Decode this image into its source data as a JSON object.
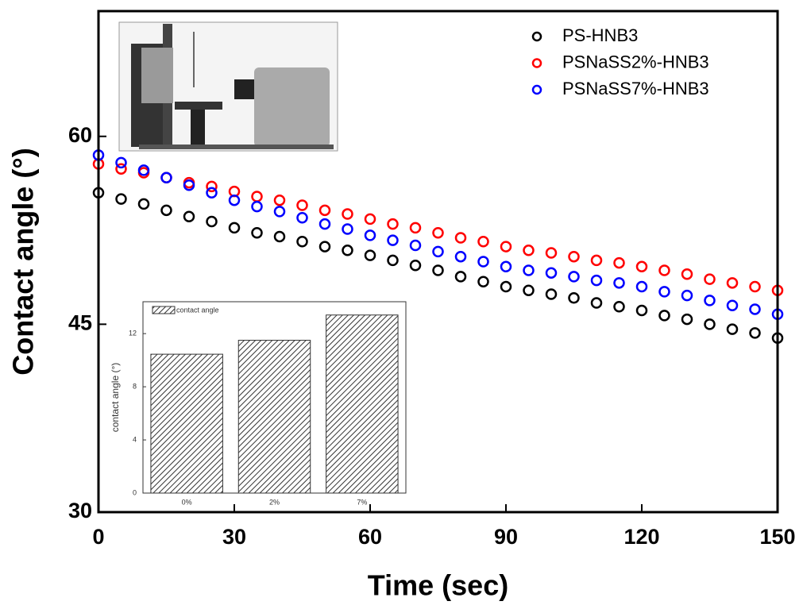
{
  "chart_data": [
    {
      "type": "scatter",
      "xlabel": "Time (sec)",
      "ylabel": "Contact angle (°)",
      "xlim": [
        0,
        150
      ],
      "xticks": [
        0,
        30,
        60,
        90,
        120,
        150
      ],
      "ylim": [
        30,
        70
      ],
      "yticks": [
        30,
        45,
        60
      ],
      "legend": "upper right",
      "x": [
        0,
        5,
        10,
        15,
        20,
        25,
        30,
        35,
        40,
        45,
        50,
        55,
        60,
        65,
        70,
        75,
        80,
        85,
        90,
        95,
        100,
        105,
        110,
        115,
        120,
        125,
        130,
        135,
        140,
        145,
        150
      ],
      "series": [
        {
          "name": "PS-HNB3",
          "color": "#000000",
          "values": [
            55.5,
            55.0,
            54.6,
            54.1,
            53.6,
            53.2,
            52.7,
            52.3,
            52.0,
            51.6,
            51.2,
            50.9,
            50.5,
            50.1,
            49.7,
            49.3,
            48.8,
            48.4,
            48.0,
            47.7,
            47.4,
            47.1,
            46.7,
            46.4,
            46.1,
            45.7,
            45.4,
            45.0,
            44.6,
            44.3,
            43.9
          ]
        },
        {
          "name": "PSNaSS2%-HNB3",
          "color": "#ff0000",
          "values": [
            57.8,
            57.4,
            57.1,
            56.7,
            56.3,
            56.0,
            55.6,
            55.2,
            54.9,
            54.5,
            54.1,
            53.8,
            53.4,
            53.0,
            52.7,
            52.3,
            51.9,
            51.6,
            51.2,
            50.9,
            50.7,
            50.4,
            50.1,
            49.9,
            49.6,
            49.3,
            49.0,
            48.6,
            48.3,
            48.0,
            47.7
          ]
        },
        {
          "name": "PSNaSS7%-HNB3",
          "color": "#0000ff",
          "values": [
            58.5,
            57.9,
            57.3,
            56.7,
            56.1,
            55.5,
            54.9,
            54.4,
            54.0,
            53.5,
            53.0,
            52.6,
            52.1,
            51.7,
            51.3,
            50.8,
            50.4,
            50.0,
            49.6,
            49.3,
            49.1,
            48.8,
            48.5,
            48.3,
            48.0,
            47.6,
            47.3,
            46.9,
            46.5,
            46.2,
            45.8
          ]
        }
      ]
    },
    {
      "type": "bar",
      "ylabel": "contact angle (°)",
      "categories": [
        "0%",
        "2%",
        "7%"
      ],
      "series": [
        {
          "name": "contact angle",
          "color": "#333333",
          "values": [
            10.45,
            11.5,
            13.4
          ]
        }
      ],
      "ylim": [
        0,
        14.4
      ],
      "yticks": [
        0,
        4,
        8,
        12
      ]
    }
  ]
}
